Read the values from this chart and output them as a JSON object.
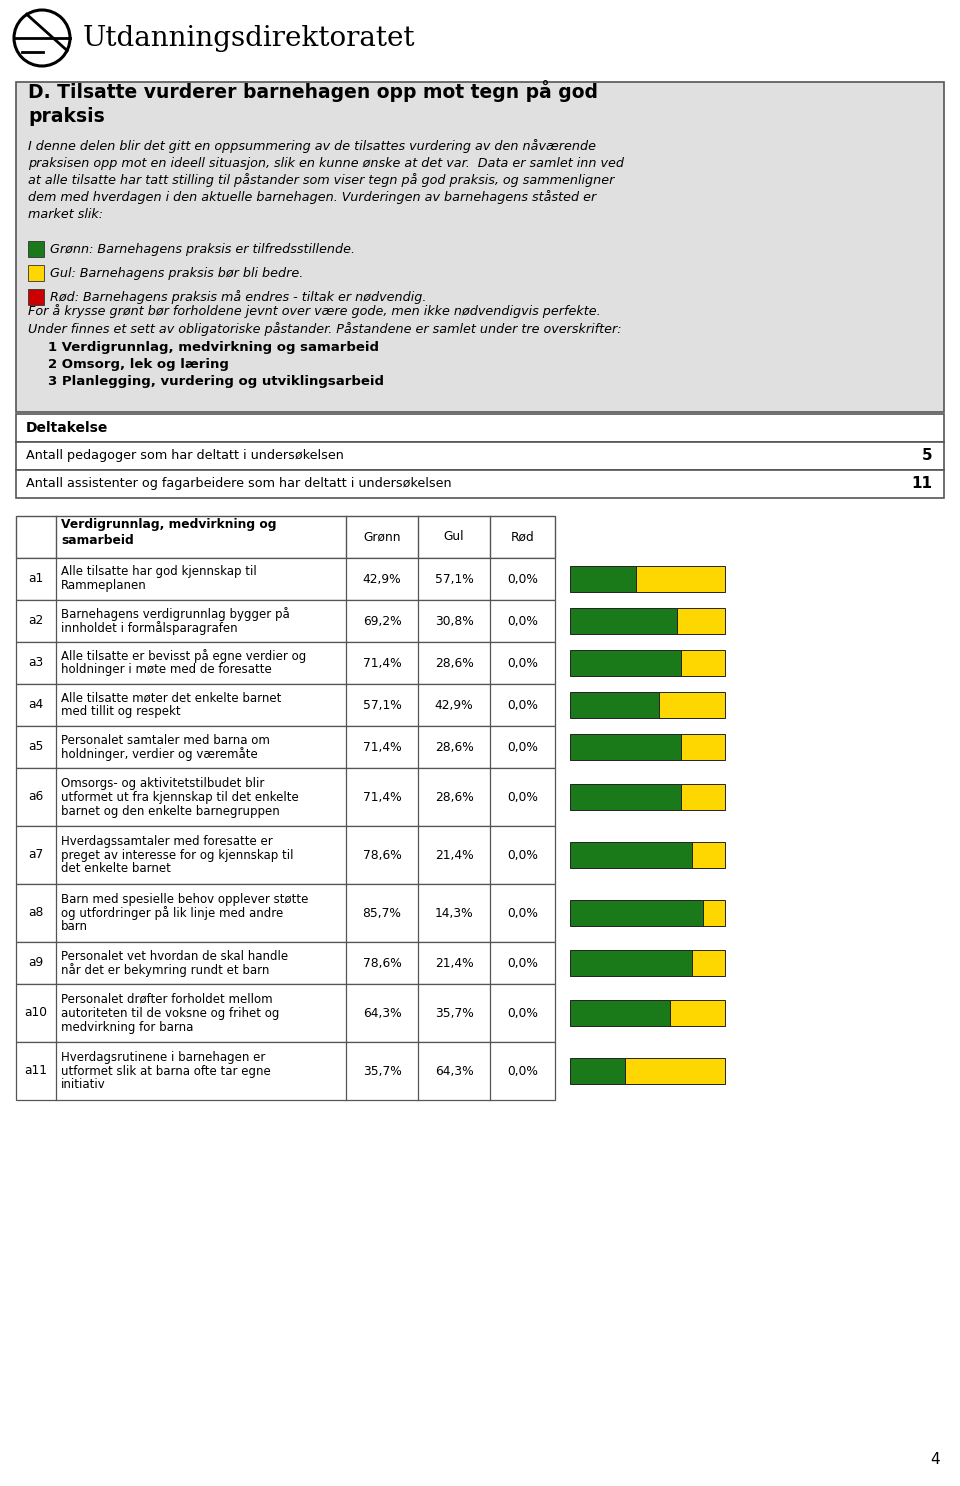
{
  "title_line1": "D. Tilsatte vurderer barnehagen opp mot tegn på god",
  "title_line2": "praksis",
  "intro_lines": [
    "I denne delen blir det gitt en oppsummering av de tilsattes vurdering av den nåværende",
    "praksisen opp mot en ideell situasjon, slik en kunne ønske at det var.  Data er samlet inn ved",
    "at alle tilsatte har tatt stilling til påstander som viser tegn på god praksis, og sammenligner",
    "dem med hverdagen i den aktuelle barnehagen. Vurderingen av barnehagens ståsted er",
    "market slik:"
  ],
  "legend_items": [
    {
      "color": "#1A7A1A",
      "text": "Grønn: Barnehagens praksis er tilfredsstillende."
    },
    {
      "color": "#FFD700",
      "text": "Gul: Barnehagens praksis bør bli bedre."
    },
    {
      "color": "#CC0000",
      "text": "Rød: Barnehagens praksis må endres - tiltak er nødvendig."
    }
  ],
  "extra_text1": "For å krysse grønt bør forholdene jevnt over være gode, men ikke nødvendigvis perfekte.",
  "extra_text2": "Under finnes et sett av obligatoriske påstander. Påstandene er samlet under tre overskrifter:",
  "list_items": [
    "1 Verdigrunnlag, medvirkning og samarbeid",
    "2 Omsorg, lek og læring",
    "3 Planlegging, vurdering og utviklingsarbeid"
  ],
  "deltakelse_title": "Deltakelse",
  "deltakelse_rows": [
    {
      "label": "Antall pedagoger som har deltatt i undersøkelsen",
      "value": "5"
    },
    {
      "label": "Antall assistenter og fagarbeidere som har deltatt i undersøkelsen",
      "value": "11"
    }
  ],
  "rows": [
    {
      "id": "a1",
      "lines": [
        "Alle tilsatte har god kjennskap til",
        "Rammeplanen"
      ],
      "gronn": "42,9%",
      "gul": "57,1%",
      "rod": "0,0%",
      "g": 42.9,
      "y": 57.1,
      "r": 0.0
    },
    {
      "id": "a2",
      "lines": [
        "Barnehagens verdigrunnlag bygger på",
        "innholdet i formålsparagrafen"
      ],
      "gronn": "69,2%",
      "gul": "30,8%",
      "rod": "0,0%",
      "g": 69.2,
      "y": 30.8,
      "r": 0.0
    },
    {
      "id": "a3",
      "lines": [
        "Alle tilsatte er bevisst på egne verdier og",
        "holdninger i møte med de foresatte"
      ],
      "gronn": "71,4%",
      "gul": "28,6%",
      "rod": "0,0%",
      "g": 71.4,
      "y": 28.6,
      "r": 0.0
    },
    {
      "id": "a4",
      "lines": [
        "Alle tilsatte møter det enkelte barnet",
        "med tillit og respekt"
      ],
      "gronn": "57,1%",
      "gul": "42,9%",
      "rod": "0,0%",
      "g": 57.1,
      "y": 42.9,
      "r": 0.0
    },
    {
      "id": "a5",
      "lines": [
        "Personalet samtaler med barna om",
        "holdninger, verdier og væremåte"
      ],
      "gronn": "71,4%",
      "gul": "28,6%",
      "rod": "0,0%",
      "g": 71.4,
      "y": 28.6,
      "r": 0.0
    },
    {
      "id": "a6",
      "lines": [
        "Omsorgs- og aktivitetstilbudet blir",
        "utformet ut fra kjennskap til det enkelte",
        "barnet og den enkelte barnegruppen"
      ],
      "gronn": "71,4%",
      "gul": "28,6%",
      "rod": "0,0%",
      "g": 71.4,
      "y": 28.6,
      "r": 0.0
    },
    {
      "id": "a7",
      "lines": [
        "Hverdagssamtaler med foresatte er",
        "preget av interesse for og kjennskap til",
        "det enkelte barnet"
      ],
      "gronn": "78,6%",
      "gul": "21,4%",
      "rod": "0,0%",
      "g": 78.6,
      "y": 21.4,
      "r": 0.0
    },
    {
      "id": "a8",
      "lines": [
        "Barn med spesielle behov opplever støtte",
        "og utfordringer på lik linje med andre",
        "barn"
      ],
      "gronn": "85,7%",
      "gul": "14,3%",
      "rod": "0,0%",
      "g": 85.7,
      "y": 14.3,
      "r": 0.0
    },
    {
      "id": "a9",
      "lines": [
        "Personalet vet hvordan de skal handle",
        "når det er bekymring rundt et barn"
      ],
      "gronn": "78,6%",
      "gul": "21,4%",
      "rod": "0,0%",
      "g": 78.6,
      "y": 21.4,
      "r": 0.0
    },
    {
      "id": "a10",
      "lines": [
        "Personalet drøfter forholdet mellom",
        "autoriteten til de voksne og frihet og",
        "medvirkning for barna"
      ],
      "gronn": "64,3%",
      "gul": "35,7%",
      "rod": "0,0%",
      "g": 64.3,
      "y": 35.7,
      "r": 0.0
    },
    {
      "id": "a11",
      "lines": [
        "Hverdagsrutinene i barnehagen er",
        "utformet slik at barna ofte tar egne",
        "initiativ"
      ],
      "gronn": "35,7%",
      "gul": "64,3%",
      "rod": "0,0%",
      "g": 35.7,
      "y": 64.3,
      "r": 0.0
    }
  ],
  "page_number": "4",
  "green_color": "#1A7A1A",
  "yellow_color": "#FFD700",
  "red_color": "#CC0000",
  "gray_bg": "#E0E0E0",
  "white": "#FFFFFF",
  "border_color": "#555555"
}
